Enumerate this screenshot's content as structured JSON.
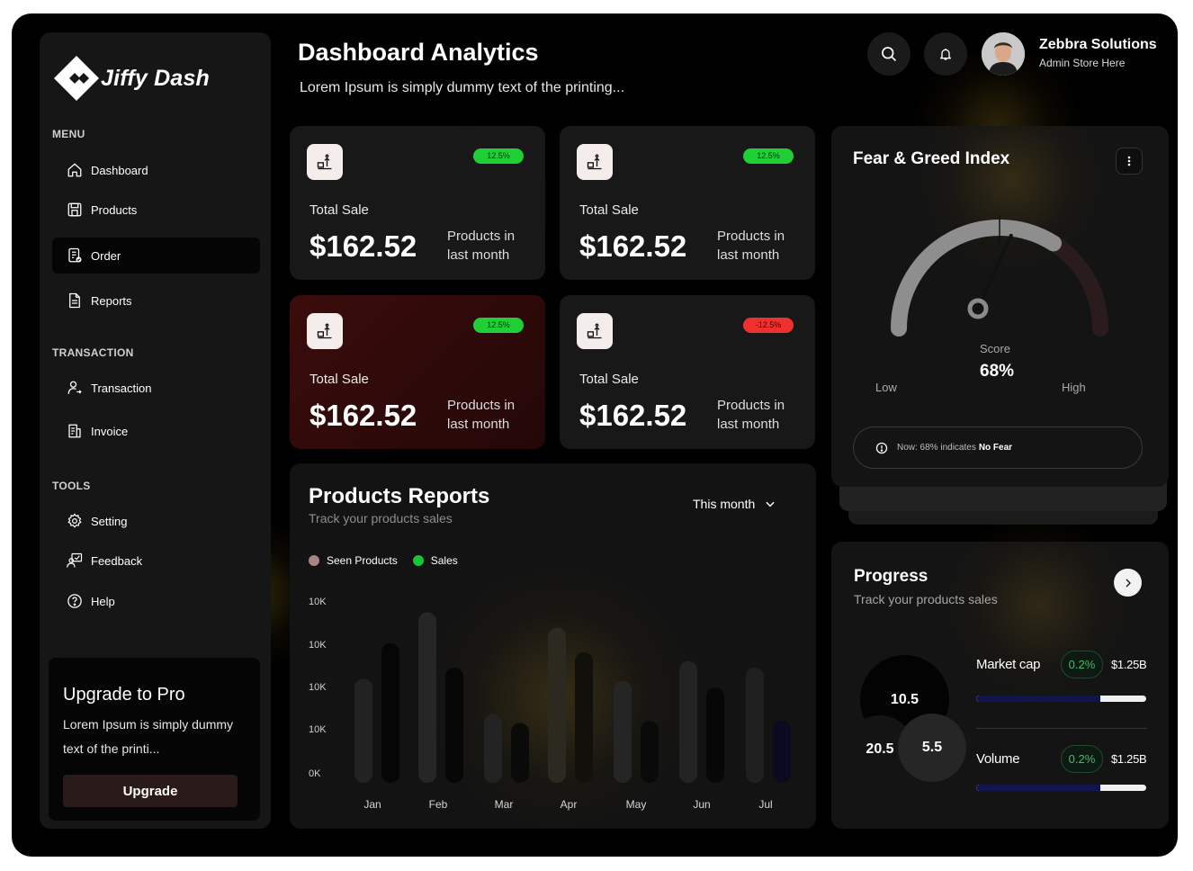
{
  "brand": {
    "name": "Jiffy Dash"
  },
  "sidebar": {
    "sections": [
      {
        "title": "MENU"
      },
      {
        "title": "TRANSACTION"
      },
      {
        "title": "TOOLS"
      }
    ],
    "items": [
      {
        "label": "Dashboard",
        "icon": "home-icon"
      },
      {
        "label": "Products",
        "icon": "save-icon"
      },
      {
        "label": "Order",
        "icon": "order-icon",
        "active": true
      },
      {
        "label": "Reports",
        "icon": "document-icon"
      },
      {
        "label": "Transaction",
        "icon": "user-transaction-icon"
      },
      {
        "label": "Invoice",
        "icon": "invoice-icon"
      },
      {
        "label": "Setting",
        "icon": "gear-icon"
      },
      {
        "label": "Feedback",
        "icon": "feedback-icon"
      },
      {
        "label": "Help",
        "icon": "help-icon"
      }
    ],
    "upgrade": {
      "title": "Upgrade to Pro",
      "text": "Lorem Ipsum is simply dummy text of the printi...",
      "button": "Upgrade"
    }
  },
  "header": {
    "title": "Dashboard Analytics",
    "subtitle": "Lorem Ipsum is simply dummy text of the printing...",
    "user": {
      "name": "Zebbra Solutions",
      "role": "Admin Store Here"
    }
  },
  "stats": [
    {
      "badge": "12.5%",
      "badge_color": "#1ed036",
      "label": "Total Sale",
      "value": "$162.52",
      "note": "Products in last month"
    },
    {
      "badge": "12.5%",
      "badge_color": "#1ed036",
      "label": "Total Sale",
      "value": "$162.52",
      "note": "Products in last month"
    },
    {
      "badge": "12.5%",
      "badge_color": "#1ed036",
      "label": "Total Sale",
      "value": "$162.52",
      "note": "Products in last month"
    },
    {
      "badge": "-12.5%",
      "badge_color": "#f0302f",
      "label": "Total Sale",
      "value": "$162.52",
      "note": "Products in last month"
    }
  ],
  "reports": {
    "title": "Products Reports",
    "subtitle": "Track your products sales",
    "period": "This month",
    "legend": [
      {
        "name": "Seen Products",
        "color": "#a88484"
      },
      {
        "name": "Sales",
        "color": "#19c436"
      }
    ]
  },
  "chart_data": {
    "type": "bar",
    "categories": [
      "Jan",
      "Feb",
      "Mar",
      "Apr",
      "May",
      "Jun",
      "Jul"
    ],
    "y_tick_labels": [
      "10K",
      "10K",
      "10K",
      "10K",
      "0K"
    ],
    "ylim": [
      0,
      40
    ],
    "series": [
      {
        "name": "Seen Products",
        "values": [
          23.5,
          38.5,
          15.5,
          35,
          23,
          27.5,
          26
        ]
      },
      {
        "name": "Sales",
        "values": [
          31.5,
          26,
          13.5,
          29.5,
          14,
          21.5,
          14
        ]
      }
    ]
  },
  "fear_greed": {
    "title": "Fear & Greed Index",
    "score_label": "Score",
    "score": "68%",
    "score_value": 68,
    "low_label": "Low",
    "high_label": "High",
    "info_prefix": "Now: 68% indicates",
    "info_emphasis": "No Fear"
  },
  "progress": {
    "title": "Progress",
    "subtitle": "Track your products sales",
    "bubbles": [
      "10.5",
      "20.5",
      "5.5"
    ],
    "metrics": [
      {
        "label": "Market cap",
        "change": "0.2%",
        "value": "$1.25B",
        "fill": 0.73
      },
      {
        "label": "Volume",
        "change": "0.2%",
        "value": "$1.25B",
        "fill": 0.73
      }
    ]
  }
}
